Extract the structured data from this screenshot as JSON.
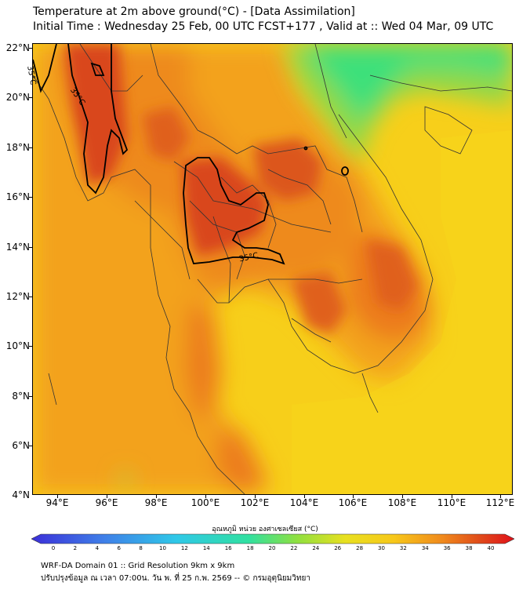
{
  "header": {
    "title_line1": "Temperature at 2m above ground(°C) - [Data Assimilation]",
    "title_line2": "Initial Time : Wednesday 25 Feb, 00 UTC FCST+177 , Valid at :: Wed 04 Mar, 09 UTC"
  },
  "map": {
    "lat_labels": [
      "22°N",
      "20°N",
      "18°N",
      "16°N",
      "14°N",
      "12°N",
      "10°N",
      "8°N",
      "6°N",
      "4°N"
    ],
    "lon_labels": [
      "94°E",
      "96°E",
      "98°E",
      "100°E",
      "102°E",
      "104°E",
      "106°E",
      "108°E",
      "110°E",
      "112°E"
    ],
    "contour_labels": [
      "35°C",
      "35°C",
      "35°C"
    ],
    "colors": {
      "cool_green": "#3ee07a",
      "mid_yellow": "#f7d21a",
      "orange": "#f39a20",
      "hot_red": "#e0521c",
      "deep_red": "#cc3a18",
      "border_line": "#333333"
    }
  },
  "colorbar": {
    "title": "อุณหภูมิ หน่วย องศาเซลเซียส (°C)",
    "ticks": [
      "0",
      "2",
      "4",
      "6",
      "8",
      "10",
      "12",
      "14",
      "16",
      "18",
      "20",
      "22",
      "24",
      "26",
      "28",
      "30",
      "32",
      "34",
      "36",
      "38",
      "40"
    ],
    "range": [
      0,
      40
    ]
  },
  "footer": {
    "line1": "WRF-DA Domain 01 :: Grid Resolution 9km x 9km",
    "line2": "ปรับปรุงข้อมูล ณ เวลา 07:00น. วัน พ. ที่ 25 ก.พ. 2569 -- © กรมอุตุนิยมวิทยา"
  }
}
